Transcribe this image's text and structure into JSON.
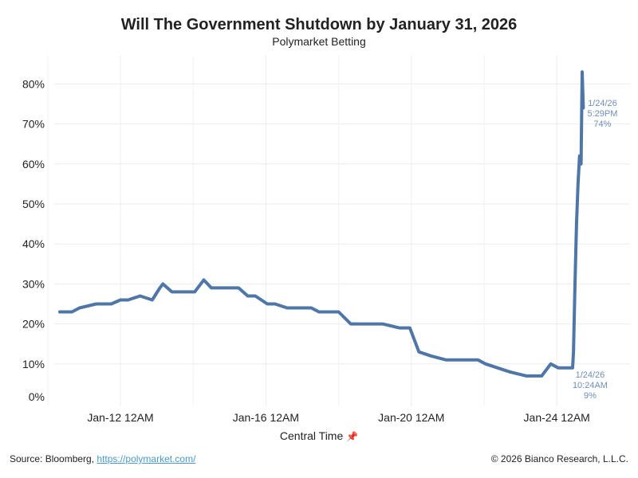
{
  "title": "Will The Government Shutdown by January 31, 2026",
  "subtitle": "Polymarket Betting",
  "footer": {
    "source_prefix": "Source: Bloomberg, ",
    "source_link": "https://polymarket.com/",
    "copyright": "© 2026 Bianco Research, L.L.C."
  },
  "chart_data": {
    "type": "line",
    "title": "Will The Government Shutdown by January 31, 2026",
    "subtitle": "Polymarket Betting",
    "xlabel": "Central Time",
    "xlabel_icon": "pin-icon",
    "ylabel": "",
    "ylim": [
      0,
      85
    ],
    "xlim": [
      "2026-01-10T06:00",
      "2026-01-25T12:00"
    ],
    "grid": true,
    "legend": "none",
    "line_color": "#4e76a6",
    "yticks": [
      0,
      10,
      20,
      30,
      40,
      50,
      60,
      70,
      80
    ],
    "ytick_labels": [
      "0%",
      "10%",
      "20%",
      "30%",
      "40%",
      "50%",
      "60%",
      "70%",
      "80%"
    ],
    "xticks": [
      "2026-01-12T00:00",
      "2026-01-16T00:00",
      "2026-01-20T00:00",
      "2026-01-24T00:00"
    ],
    "xtick_labels": [
      "Jan-12 12AM",
      "Jan-16 12AM",
      "Jan-20 12AM",
      "Jan-24 12AM"
    ],
    "x": [
      "2026-01-10T08:00",
      "2026-01-10T16:00",
      "2026-01-10T21:00",
      "2026-01-11T08:00",
      "2026-01-11T18:00",
      "2026-01-12T00:00",
      "2026-01-12T05:00",
      "2026-01-12T13:00",
      "2026-01-12T21:00",
      "2026-01-13T02:00",
      "2026-01-13T04:00",
      "2026-01-13T10:00",
      "2026-01-13T18:00",
      "2026-01-14T01:00",
      "2026-01-14T07:00",
      "2026-01-14T12:00",
      "2026-01-14T20:00",
      "2026-01-15T06:00",
      "2026-01-15T12:00",
      "2026-01-15T17:00",
      "2026-01-16T01:00",
      "2026-01-16T06:00",
      "2026-01-16T14:00",
      "2026-01-16T22:00",
      "2026-01-17T06:00",
      "2026-01-17T11:00",
      "2026-01-17T16:00",
      "2026-01-18T00:00",
      "2026-01-18T08:00",
      "2026-01-18T19:00",
      "2026-01-19T05:00",
      "2026-01-19T16:00",
      "2026-01-19T23:00",
      "2026-01-20T05:00",
      "2026-01-20T13:00",
      "2026-01-20T23:00",
      "2026-01-21T10:00",
      "2026-01-21T20:00",
      "2026-01-22T01:00",
      "2026-01-22T09:00",
      "2026-01-22T17:00",
      "2026-01-23T04:00",
      "2026-01-23T14:00",
      "2026-01-23T20:00",
      "2026-01-24T01:00",
      "2026-01-24T10:24",
      "2026-01-24T11:00",
      "2026-01-24T12:00",
      "2026-01-24T13:00",
      "2026-01-24T14:00",
      "2026-01-24T15:00",
      "2026-01-24T16:00",
      "2026-01-24T16:45",
      "2026-01-24T17:29"
    ],
    "y": [
      23,
      23,
      24,
      25,
      25,
      26,
      26,
      27,
      26,
      29,
      30,
      28,
      28,
      28,
      31,
      29,
      29,
      29,
      27,
      27,
      25,
      25,
      24,
      24,
      24,
      23,
      23,
      23,
      20,
      20,
      20,
      19,
      19,
      13,
      12,
      11,
      11,
      11,
      10,
      9,
      8,
      7,
      7,
      10,
      9,
      9,
      13,
      30,
      45,
      55,
      62,
      60,
      83,
      74
    ],
    "annotations": [
      {
        "x": "2026-01-24T10:24",
        "y": 9,
        "lines": [
          "1/24/26",
          "10:24AM",
          "9%"
        ]
      },
      {
        "x": "2026-01-24T17:29",
        "y": 74,
        "lines": [
          "1/24/26",
          "5:29PM",
          "74%"
        ]
      }
    ]
  }
}
